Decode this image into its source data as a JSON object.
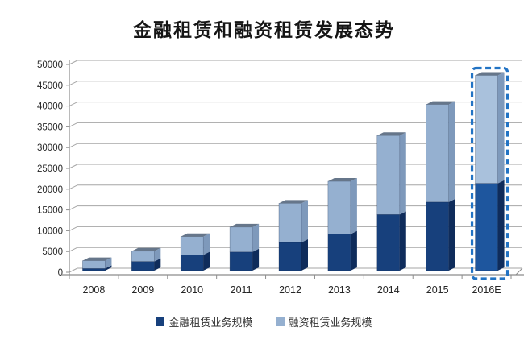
{
  "title": "金融租赁和融资租赁发展态势",
  "chart_data": {
    "type": "bar",
    "stacked": true,
    "style": "excel-3d",
    "title": "金融租赁和融资租赁发展态势",
    "categories": [
      "2008",
      "2009",
      "2010",
      "2011",
      "2012",
      "2013",
      "2014",
      "2015",
      "2016E"
    ],
    "series": [
      {
        "name": "金融租赁业务规模",
        "color": "#17407C",
        "side_color": "#0F2C5B",
        "values": [
          500,
          2200,
          3800,
          4500,
          6800,
          8800,
          13500,
          16500,
          21000
        ]
      },
      {
        "name": "融资租赁业务规模",
        "color": "#95B0D0",
        "side_color": "#7E99BB",
        "values": [
          1900,
          2500,
          4400,
          6000,
          9400,
          12700,
          19000,
          23500,
          26000
        ]
      }
    ],
    "stack_totals": [
      2400,
      4700,
      8200,
      10500,
      16200,
      21500,
      32500,
      40000,
      47000
    ],
    "top_face_color": "#66768A",
    "ylim": [
      0,
      50000
    ],
    "yticks": [
      0,
      5000,
      10000,
      15000,
      20000,
      25000,
      30000,
      35000,
      40000,
      45000,
      50000
    ],
    "xlabel": "",
    "ylabel": "",
    "grid": true,
    "gridline_color": "#A6A6A6",
    "axis_line_color": "#8C8C8C",
    "axis_text_color": "#262626",
    "legend_position": "bottom",
    "forecast_category": "2016E",
    "forecast_outline_color": "#2273C4",
    "forecast_colors": {
      "dark": "#1E569E",
      "light": "#A9C1DC"
    }
  }
}
